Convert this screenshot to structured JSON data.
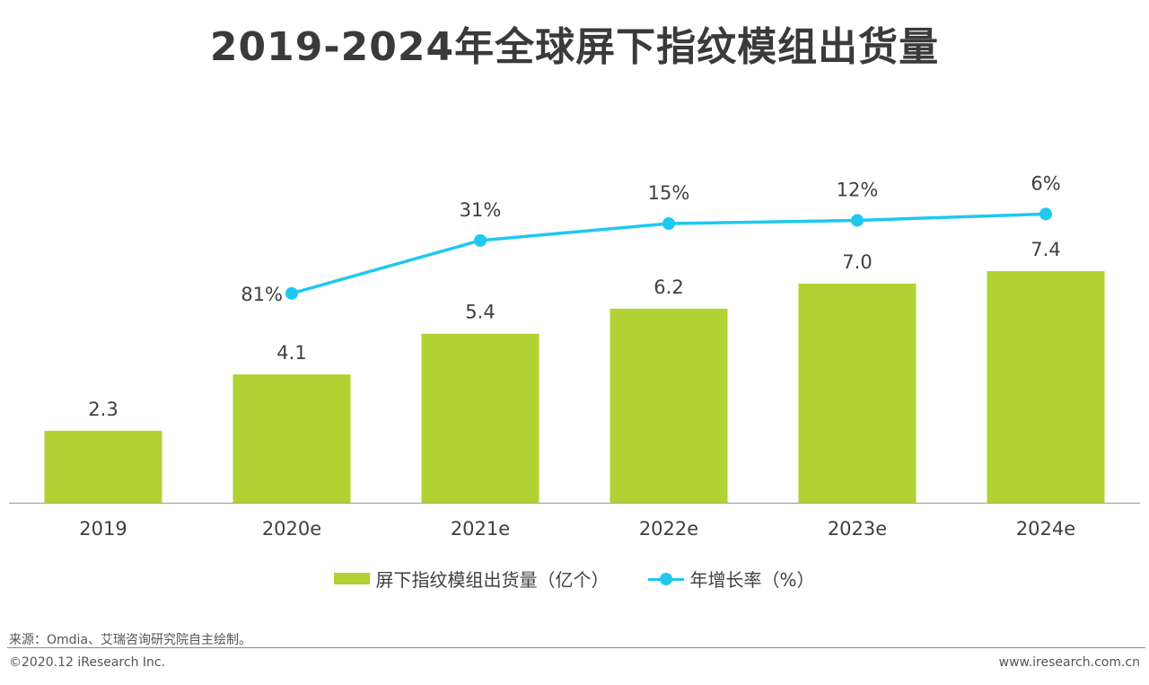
{
  "title": "2019-2024年全球屏下指纹模组出货量",
  "source": "来源：Omdia、艾瑞咨询研究院自主绘制。",
  "copyright": "©2020.12 iResearch Inc.",
  "website": "www.iresearch.com.cn",
  "colors": {
    "bar": "#b0d232",
    "line": "#1ec8ef",
    "axis": "#a6a6a6",
    "text": "#404040"
  },
  "chart_data": {
    "type": "bar",
    "categories": [
      "2019",
      "2020e",
      "2021e",
      "2022e",
      "2023e",
      "2024e"
    ],
    "series": [
      {
        "name": "屏下指纹模组出货量（亿个）",
        "type": "bar",
        "values": [
          2.3,
          4.1,
          5.4,
          6.2,
          7.0,
          7.4
        ],
        "labels": [
          "2.3",
          "4.1",
          "5.4",
          "6.2",
          "7.0",
          "7.4"
        ]
      },
      {
        "name": "年增长率（%）",
        "type": "line",
        "values": [
          null,
          81,
          31,
          15,
          12,
          6
        ],
        "labels": [
          "",
          "81%",
          "31%",
          "15%",
          "12%",
          "6%"
        ]
      }
    ],
    "bar_ylim": [
      0,
      8.5
    ],
    "legend_position": "bottom-center",
    "grid": false
  }
}
